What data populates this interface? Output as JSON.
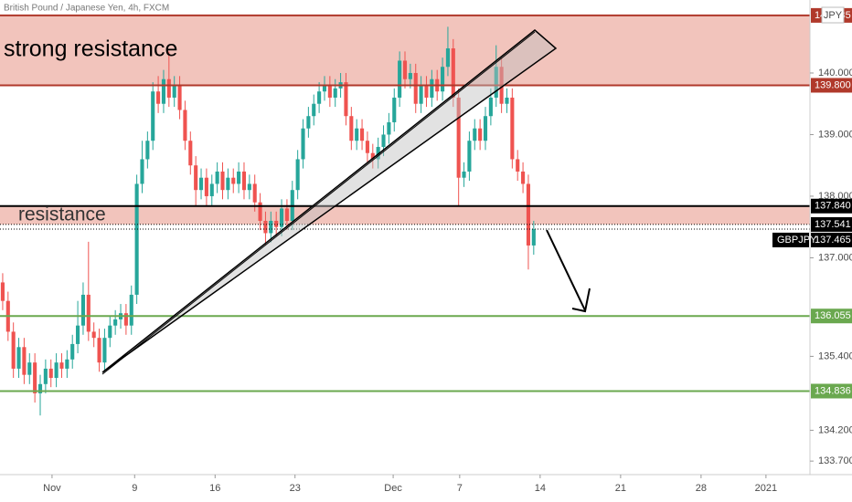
{
  "chart_data": {
    "type": "candlestick",
    "title": "British Pound / Japanese Yen, 4h, FXCM",
    "currency": "JPY",
    "symbol": "GBPJPY",
    "up_color": "#26a69a",
    "down_color": "#ef5350",
    "xlim": [
      0,
      151
    ],
    "xticks": [
      {
        "value": 9.7,
        "label": "Nov"
      },
      {
        "value": 25.1,
        "label": "9"
      },
      {
        "value": 40.1,
        "label": "16"
      },
      {
        "value": 55.0,
        "label": "23"
      },
      {
        "value": 73.3,
        "label": "Dec"
      },
      {
        "value": 85.7,
        "label": "7"
      },
      {
        "value": 100.7,
        "label": "14"
      },
      {
        "value": 115.7,
        "label": "21"
      },
      {
        "value": 130.7,
        "label": "28"
      },
      {
        "value": 142.8,
        "label": "2021"
      }
    ],
    "ylim": [
      133.48,
      141.185
    ],
    "yticks": [
      {
        "value": 140,
        "label": "140.000"
      },
      {
        "value": 139,
        "label": "139.000"
      },
      {
        "value": 138,
        "label": "138.000"
      },
      {
        "value": 137,
        "label": "137.000"
      },
      {
        "value": 135.4,
        "label": "135.400"
      },
      {
        "value": 134.2,
        "label": "134.200"
      },
      {
        "value": 133.7,
        "label": "133.700"
      }
    ],
    "open": [
      136.6,
      136.3,
      135.8,
      135.2,
      135.55,
      135.1,
      135.3,
      134.8,
      134.95,
      135.2,
      135.05,
      135.3,
      135.2,
      135.35,
      135.6,
      135.9,
      136.4,
      135.8,
      135.7,
      135.3,
      135.7,
      135.9,
      136.0,
      136.1,
      135.9,
      136.4,
      138.2,
      138.6,
      138.9,
      139.7,
      139.5,
      139.9,
      139.6,
      139.8,
      139.4,
      138.9,
      138.5,
      138.1,
      138.3,
      138.0,
      138.2,
      138.4,
      138.1,
      138.3,
      138.2,
      138.4,
      138.1,
      138.2,
      137.9,
      137.6,
      137.4,
      137.6,
      137.5,
      137.8,
      137.6,
      138.1,
      138.6,
      139.1,
      139.3,
      139.5,
      139.7,
      139.8,
      139.6,
      139.75,
      139.85,
      139.3,
      138.9,
      139.1,
      138.9,
      138.7,
      138.6,
      138.8,
      139.0,
      139.2,
      139.6,
      140.2,
      139.9,
      140.0,
      139.5,
      139.8,
      139.6,
      139.9,
      139.7,
      140.1,
      140.4,
      139.6,
      138.3,
      138.4,
      138.9,
      139.1,
      138.9,
      139.3,
      139.6,
      140.1,
      139.5,
      139.6,
      138.6,
      138.4,
      138.2,
      137.2
    ],
    "high": [
      136.75,
      136.45,
      135.95,
      135.7,
      135.7,
      135.45,
      135.45,
      135.1,
      135.35,
      135.35,
      135.45,
      135.45,
      135.5,
      135.75,
      136.3,
      136.6,
      137.26,
      135.95,
      135.85,
      135.85,
      136.05,
      136.15,
      136.25,
      136.25,
      136.55,
      138.35,
      138.9,
      139.05,
      139.85,
      139.95,
      140.05,
      140.35,
      139.95,
      139.95,
      139.55,
      139.05,
      138.65,
      138.45,
      138.45,
      138.35,
      138.55,
      138.55,
      138.45,
      138.45,
      138.55,
      138.55,
      138.35,
      138.35,
      138.05,
      137.75,
      137.75,
      137.75,
      137.95,
      137.95,
      138.25,
      138.75,
      139.25,
      139.45,
      139.65,
      139.85,
      139.95,
      139.95,
      139.9,
      140.0,
      140.0,
      139.45,
      139.25,
      139.25,
      139.05,
      138.85,
      138.95,
      139.15,
      139.35,
      139.75,
      140.35,
      140.35,
      140.15,
      140.15,
      139.95,
      139.95,
      140.05,
      140.05,
      140.25,
      140.75,
      140.55,
      139.75,
      138.55,
      139.05,
      139.25,
      139.25,
      139.45,
      139.75,
      140.45,
      140.25,
      139.75,
      139.75,
      138.75,
      138.55,
      138.35,
      137.6
    ],
    "low": [
      136.15,
      135.65,
      135.05,
      135.05,
      134.95,
      134.95,
      134.65,
      134.44,
      134.8,
      134.9,
      134.9,
      135.05,
      135.05,
      135.2,
      135.45,
      135.75,
      135.65,
      135.55,
      135.15,
      135.15,
      135.55,
      135.75,
      135.85,
      135.75,
      135.75,
      136.25,
      138.05,
      138.45,
      138.75,
      139.35,
      139.35,
      139.45,
      139.45,
      139.25,
      138.75,
      138.35,
      137.85,
      137.95,
      137.85,
      137.85,
      138.05,
      137.95,
      137.95,
      138.05,
      138.05,
      137.95,
      137.95,
      137.75,
      137.45,
      137.2,
      137.25,
      137.35,
      137.35,
      137.45,
      137.45,
      137.95,
      138.45,
      138.95,
      139.15,
      139.35,
      139.55,
      139.45,
      139.45,
      139.6,
      139.15,
      138.75,
      138.75,
      138.75,
      138.55,
      138.45,
      138.45,
      138.65,
      138.85,
      139.05,
      139.45,
      139.75,
      139.75,
      139.35,
      139.35,
      139.45,
      139.45,
      139.55,
      139.55,
      139.95,
      139.45,
      137.85,
      138.15,
      138.25,
      138.75,
      138.75,
      138.75,
      139.15,
      139.45,
      139.35,
      139.35,
      138.45,
      138.25,
      138.05,
      136.81,
      137.05
    ],
    "close": [
      136.3,
      135.8,
      135.2,
      135.55,
      135.1,
      135.3,
      134.8,
      134.95,
      135.2,
      135.05,
      135.3,
      135.2,
      135.35,
      135.6,
      135.9,
      136.4,
      135.8,
      135.7,
      135.3,
      135.7,
      135.9,
      136.0,
      136.1,
      135.9,
      136.4,
      138.2,
      138.6,
      138.9,
      139.7,
      139.5,
      139.9,
      139.6,
      139.8,
      139.4,
      138.9,
      138.5,
      138.1,
      138.3,
      138.0,
      138.2,
      138.4,
      138.1,
      138.3,
      138.2,
      138.4,
      138.1,
      138.2,
      137.9,
      137.6,
      137.4,
      137.6,
      137.5,
      137.8,
      137.6,
      138.1,
      138.6,
      139.1,
      139.3,
      139.5,
      139.7,
      139.8,
      139.6,
      139.75,
      139.85,
      139.3,
      138.9,
      139.1,
      138.9,
      138.7,
      138.6,
      138.8,
      139.0,
      139.2,
      139.6,
      140.2,
      139.9,
      140.0,
      139.5,
      139.8,
      139.6,
      139.9,
      139.7,
      140.1,
      140.4,
      139.6,
      138.3,
      138.4,
      138.9,
      139.1,
      138.9,
      139.3,
      139.6,
      140.1,
      139.5,
      139.6,
      138.6,
      138.4,
      138.2,
      137.2,
      137.465
    ],
    "zones": [
      {
        "label": "strong resistance",
        "from": 139.8,
        "to": 140.935,
        "color": "#f2c4bc"
      },
      {
        "label": "resistance",
        "from": 137.541,
        "to": 137.84,
        "color": "#f2c4bc"
      }
    ],
    "levels": [
      {
        "value": 140.935,
        "color": "#b0392b"
      },
      {
        "value": 139.8,
        "label": "139.800",
        "color": "#b0392b"
      },
      {
        "value": 137.84,
        "label": "137.840",
        "color": "#000000"
      },
      {
        "value": 137.541,
        "color": "#000000",
        "style": "dotted"
      },
      {
        "value": 137.465,
        "color": "#000000",
        "style": "dotted"
      },
      {
        "value": 136.055,
        "color": "#6aa84f"
      },
      {
        "value": 134.836,
        "color": "#6aa84f"
      }
    ]
  }
}
